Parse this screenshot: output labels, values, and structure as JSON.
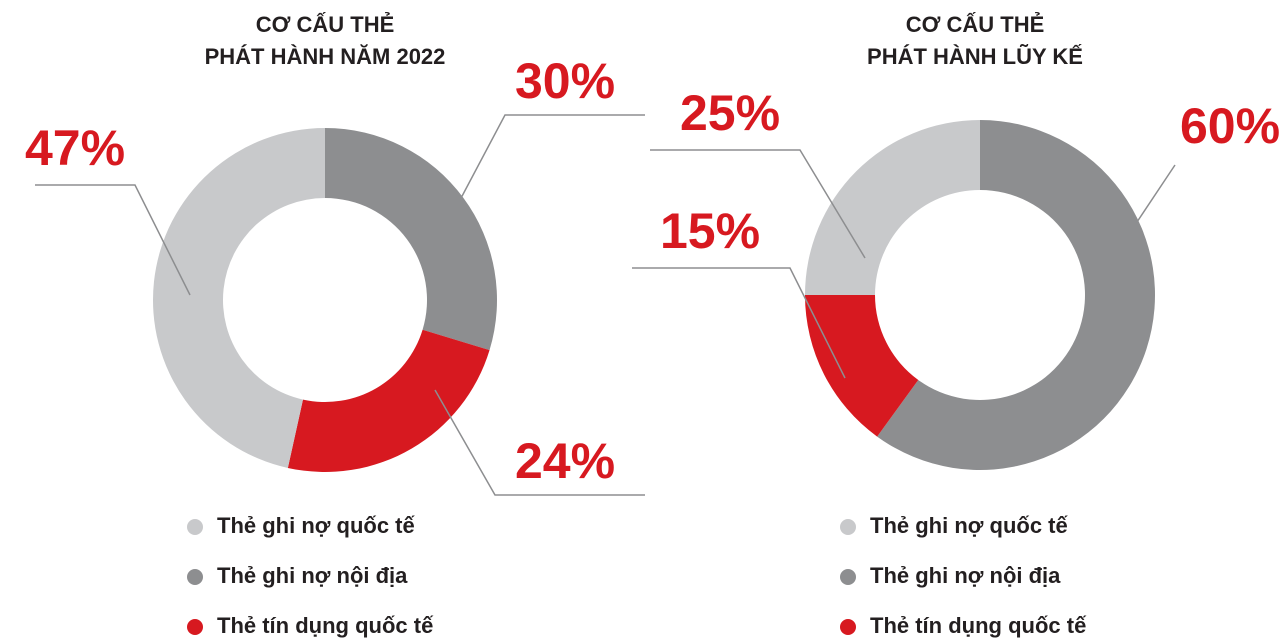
{
  "chart_data": [
    {
      "type": "donut",
      "title": [
        "CƠ CẤU THẺ",
        "PHÁT HÀNH NĂM 2022"
      ],
      "categories": [
        "Thẻ ghi nợ quốc tế",
        "Thẻ ghi nợ nội địa",
        "Thẻ tín dụng quốc tế"
      ],
      "values": [
        47,
        30,
        24
      ],
      "value_labels": [
        "47%",
        "30%",
        "24%"
      ],
      "colors": [
        "#c8c9cb",
        "#8d8e90",
        "#d71920"
      ]
    },
    {
      "type": "donut",
      "title": [
        "CƠ CẤU THẺ",
        "PHÁT HÀNH LŨY KẾ"
      ],
      "categories": [
        "Thẻ ghi nợ quốc tế",
        "Thẻ ghi nợ nội địa",
        "Thẻ tín dụng quốc tế"
      ],
      "values": [
        25,
        60,
        15
      ],
      "value_labels": [
        "25%",
        "60%",
        "15%"
      ],
      "colors": [
        "#c8c9cb",
        "#8d8e90",
        "#d71920"
      ]
    }
  ]
}
